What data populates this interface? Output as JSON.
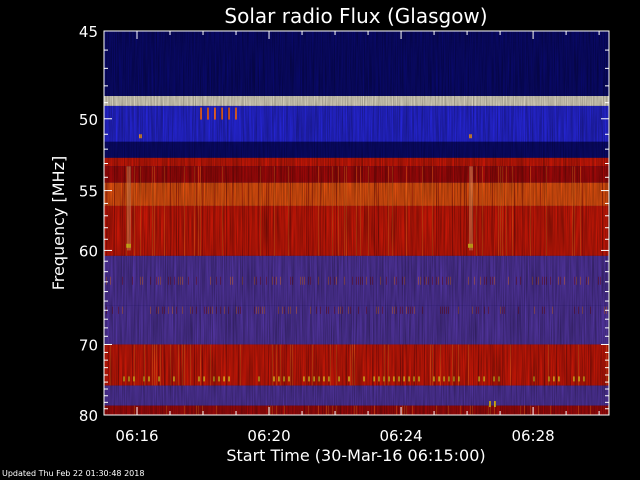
{
  "chart_data": {
    "type": "heatmap",
    "title": "Solar radio Flux (Glasgow)",
    "xlabel": "Start Time (30-Mar-16 06:15:00)",
    "ylabel": "Frequency [MHz]",
    "x_ticks": [
      "06:16",
      "06:20",
      "06:24",
      "06:28"
    ],
    "y_ticks": [
      "45",
      "50",
      "55",
      "60",
      "70",
      "80"
    ],
    "y_tick_values": [
      45,
      50,
      55,
      60,
      70,
      80
    ],
    "y_scale": "reciprocal",
    "ylim": [
      45,
      80
    ],
    "colors": {
      "navy": "#0a0a78",
      "blue": "#2a2af0",
      "purple": "#5a3ab0",
      "dark_red": "#b40a0a",
      "red": "#e01a08",
      "orange": "#ff5a10",
      "yellow": "#ffd020",
      "white_band": "#fff8e0"
    },
    "bands": [
      {
        "from": 45.0,
        "to": 45.6,
        "level": "navy"
      },
      {
        "from": 45.6,
        "to": 48.6,
        "level": "navy"
      },
      {
        "from": 48.6,
        "to": 49.2,
        "level": "white_band"
      },
      {
        "from": 49.2,
        "to": 51.5,
        "level": "blue"
      },
      {
        "from": 51.5,
        "to": 52.6,
        "level": "navy"
      },
      {
        "from": 52.6,
        "to": 53.2,
        "level": "red"
      },
      {
        "from": 53.2,
        "to": 54.4,
        "level": "dark_red"
      },
      {
        "from": 54.4,
        "to": 56.2,
        "level": "orange"
      },
      {
        "from": 56.2,
        "to": 60.5,
        "level": "red"
      },
      {
        "from": 60.5,
        "to": 65.5,
        "level": "purple"
      },
      {
        "from": 65.5,
        "to": 70.0,
        "level": "purple"
      },
      {
        "from": 70.0,
        "to": 75.5,
        "level": "red"
      },
      {
        "from": 75.5,
        "to": 78.5,
        "level": "purple"
      },
      {
        "from": 78.5,
        "to": 80.0,
        "level": "dark_red"
      }
    ]
  },
  "footer": {
    "updated": "Updated Thu Feb 22 01:30:48 2018"
  }
}
